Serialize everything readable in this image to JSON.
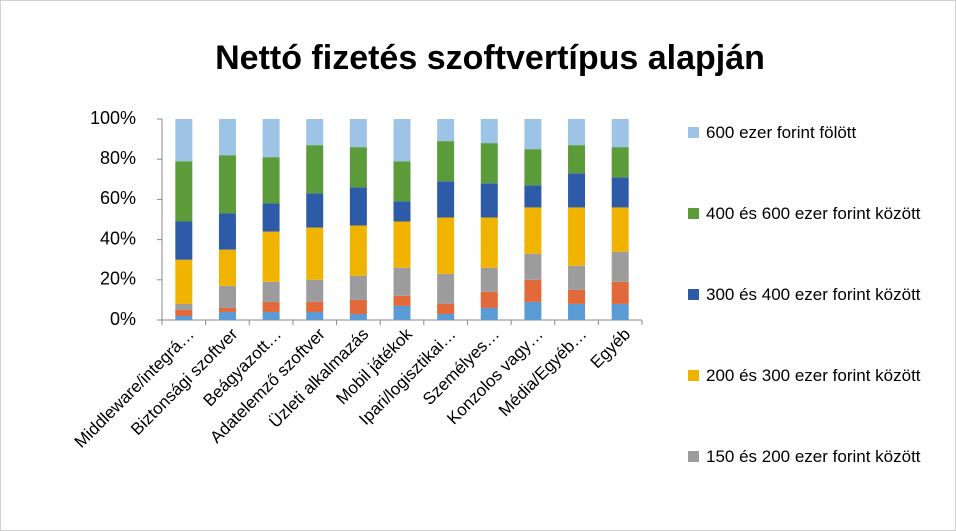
{
  "chart_data": {
    "type": "stacked_bar_100",
    "title": "Nettó fizetés szoftvertípus alapján",
    "categories": [
      "Middleware/integrá…",
      "Biztonsági szoftver",
      "Beágyazott…",
      "Adatelemző szoftver",
      "Üzleti alkalmazás",
      "Mobil játékok",
      "Ipari/logisztikai…",
      "Személyes…",
      "Konzolos vagy…",
      "Média/Egyéb…",
      "Egyéb"
    ],
    "series": [
      {
        "color": "#5b9bd5",
        "values": [
          2,
          4,
          4,
          4,
          3,
          7,
          3,
          6,
          9,
          8,
          8
        ]
      },
      {
        "color": "#e2693a",
        "values": [
          3,
          2,
          5,
          5,
          7,
          5,
          5,
          8,
          11,
          7,
          11
        ]
      },
      {
        "name": "150 és 200 ezer forint között",
        "color": "#9c9c9c",
        "values": [
          3,
          11,
          10,
          11,
          12,
          14,
          15,
          12,
          13,
          12,
          15
        ]
      },
      {
        "name": "200 és 300 ezer forint között",
        "color": "#f0b400",
        "values": [
          22,
          18,
          25,
          26,
          25,
          23,
          28,
          25,
          23,
          29,
          22
        ]
      },
      {
        "name": "300 és 400 ezer forint között",
        "color": "#2d5ba8",
        "values": [
          19,
          18,
          14,
          17,
          19,
          10,
          18,
          17,
          11,
          17,
          15
        ]
      },
      {
        "name": "400 és 600 ezer forint között",
        "color": "#5c9b3a",
        "values": [
          30,
          29,
          23,
          24,
          20,
          20,
          20,
          20,
          18,
          14,
          15
        ]
      },
      {
        "name": "600 ezer forint fölött",
        "color": "#9dc3e6",
        "values": [
          21,
          18,
          19,
          13,
          14,
          21,
          11,
          12,
          15,
          13,
          14
        ]
      }
    ],
    "ylim": [
      0,
      100
    ],
    "yticks": [
      {
        "value": 0,
        "label": "0%"
      },
      {
        "value": 20,
        "label": "20%"
      },
      {
        "value": 40,
        "label": "40%"
      },
      {
        "value": 60,
        "label": "60%"
      },
      {
        "value": 80,
        "label": "80%"
      },
      {
        "value": 100,
        "label": "100%"
      }
    ],
    "grid": false
  }
}
